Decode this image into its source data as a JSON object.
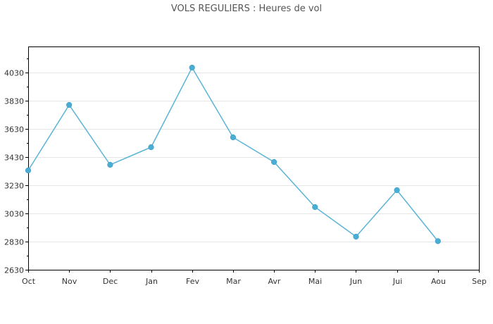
{
  "chart_data": {
    "type": "line",
    "title": "VOLS REGULIERS : Heures de vol",
    "xlabel": "",
    "ylabel": "",
    "categories": [
      "Oct",
      "Nov",
      "Dec",
      "Jan",
      "Fev",
      "Mar",
      "Avr",
      "Mai",
      "Jun",
      "Jui",
      "Aou",
      "Sep"
    ],
    "series": [
      {
        "values": [
          3335,
          3800,
          3375,
          3500,
          4065,
          3570,
          3395,
          3075,
          2865,
          3195,
          2833,
          null
        ]
      }
    ],
    "yticks": [
      2630,
      2830,
      3030,
      3230,
      3430,
      3630,
      3830,
      4030
    ],
    "ylim": [
      2630,
      4030
    ],
    "grid": true,
    "colors": {
      "line": "#5ab4d6",
      "marker": "#4aaed4",
      "grid": "#e6e6e6",
      "axis": "#000000"
    }
  }
}
